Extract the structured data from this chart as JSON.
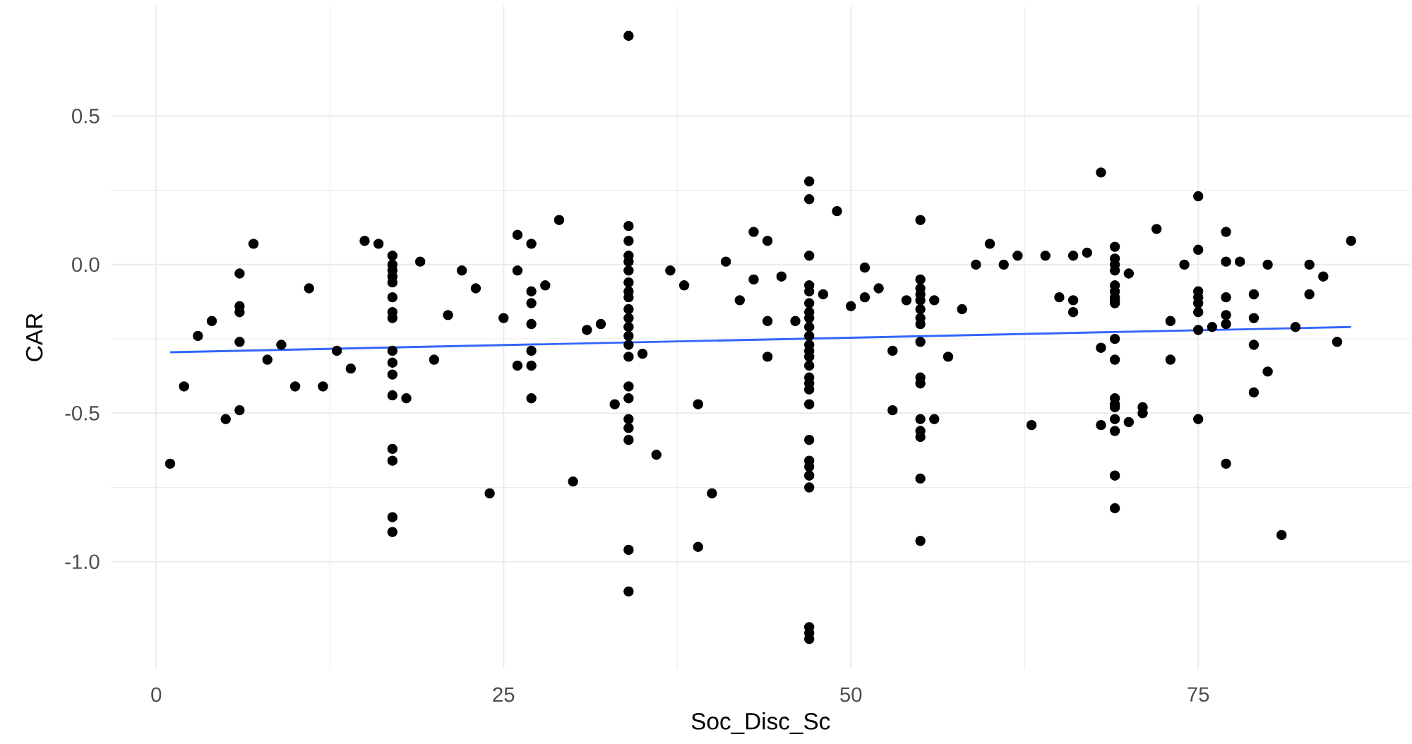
{
  "chart_data": {
    "type": "scatter",
    "xlabel": "Soc_Disc_Sc",
    "ylabel": "CAR",
    "xlim": [
      -3.25,
      90.25
    ],
    "ylim": [
      -1.36,
      0.87
    ],
    "xticks": [
      0,
      25,
      50,
      75
    ],
    "yticks": [
      {
        "value": -1.0,
        "label": "-1.0"
      },
      -0.5,
      {
        "value": 0,
        "label": "0.0"
      },
      0.5
    ],
    "grid": true,
    "marker": "circle",
    "series": [
      {
        "color": "#000000",
        "x": [
          1,
          2,
          3,
          4,
          5,
          6,
          6,
          6,
          6,
          6,
          7,
          8,
          9,
          10,
          11,
          12,
          13,
          14,
          15,
          16,
          17,
          17,
          17,
          17,
          17,
          17,
          17,
          17,
          17,
          17,
          17,
          17,
          17,
          17,
          17,
          17,
          18,
          19,
          20,
          21,
          22,
          23,
          24,
          25,
          26,
          26,
          26,
          27,
          27,
          27,
          27,
          27,
          27,
          27,
          28,
          29,
          30,
          31,
          32,
          33,
          34,
          34,
          34,
          34,
          34,
          34,
          34,
          34,
          34,
          34,
          34,
          34,
          34,
          34,
          34,
          34,
          34,
          34,
          34,
          34,
          34,
          34,
          35,
          36,
          37,
          38,
          39,
          39,
          40,
          41,
          42,
          43,
          43,
          44,
          44,
          44,
          45,
          46,
          47,
          47,
          47,
          47,
          47,
          47,
          47,
          47,
          47,
          47,
          47,
          47,
          47,
          47,
          47,
          47,
          47,
          47,
          47,
          47,
          47,
          47,
          47,
          47,
          47,
          47,
          48,
          49,
          50,
          51,
          51,
          52,
          53,
          53,
          54,
          55,
          55,
          55,
          55,
          55,
          55,
          55,
          55,
          55,
          55,
          55,
          55,
          55,
          55,
          55,
          55,
          56,
          56,
          57,
          58,
          59,
          60,
          61,
          62,
          63,
          64,
          65,
          66,
          66,
          66,
          67,
          68,
          68,
          68,
          69,
          69,
          69,
          69,
          69,
          69,
          69,
          69,
          69,
          69,
          69,
          69,
          69,
          69,
          69,
          69,
          69,
          69,
          70,
          70,
          71,
          71,
          72,
          73,
          73,
          74,
          75,
          75,
          75,
          75,
          75,
          75,
          75,
          75,
          76,
          77,
          77,
          77,
          77,
          77,
          77,
          78,
          79,
          79,
          79,
          79,
          80,
          80,
          81,
          82,
          83,
          83,
          84,
          85,
          86
        ],
        "values": [
          -0.67,
          -0.41,
          -0.24,
          -0.19,
          -0.52,
          -0.03,
          -0.14,
          -0.16,
          -0.26,
          -0.49,
          0.07,
          -0.32,
          -0.27,
          -0.41,
          -0.08,
          -0.41,
          -0.29,
          -0.35,
          0.08,
          0.07,
          0.03,
          0.0,
          -0.02,
          -0.04,
          -0.06,
          -0.11,
          -0.16,
          -0.18,
          -0.29,
          -0.33,
          -0.37,
          -0.44,
          -0.62,
          -0.66,
          -0.85,
          -0.9,
          -0.45,
          0.01,
          -0.32,
          -0.17,
          -0.02,
          -0.08,
          -0.77,
          -0.18,
          0.1,
          -0.02,
          -0.34,
          0.07,
          -0.09,
          -0.13,
          -0.2,
          -0.29,
          -0.34,
          -0.45,
          -0.07,
          0.15,
          -0.73,
          -0.22,
          -0.2,
          -0.47,
          0.77,
          0.13,
          0.08,
          0.03,
          0.01,
          -0.02,
          -0.06,
          -0.09,
          -0.11,
          -0.15,
          -0.18,
          -0.21,
          -0.24,
          -0.27,
          -0.31,
          -0.41,
          -0.45,
          -0.52,
          -0.55,
          -0.59,
          -0.96,
          -1.1,
          -0.3,
          -0.64,
          -0.02,
          -0.07,
          -0.47,
          -0.95,
          -0.77,
          0.01,
          -0.12,
          0.11,
          -0.05,
          0.08,
          -0.19,
          -0.31,
          -0.04,
          -0.19,
          0.28,
          0.22,
          0.03,
          -0.07,
          -0.09,
          -0.13,
          -0.16,
          -0.18,
          -0.21,
          -0.24,
          -0.27,
          -0.29,
          -0.31,
          -0.34,
          -0.38,
          -0.4,
          -0.42,
          -0.47,
          -0.59,
          -0.66,
          -0.68,
          -0.71,
          -0.75,
          -1.22,
          -1.24,
          -1.26,
          -0.1,
          0.18,
          -0.14,
          -0.01,
          -0.11,
          -0.08,
          -0.29,
          -0.49,
          -0.12,
          0.15,
          -0.05,
          -0.08,
          -0.1,
          -0.12,
          -0.15,
          -0.18,
          -0.2,
          -0.26,
          -0.38,
          -0.4,
          -0.52,
          -0.56,
          -0.58,
          -0.72,
          -0.93,
          -0.12,
          -0.52,
          -0.31,
          -0.15,
          0.0,
          0.07,
          0.0,
          0.03,
          -0.54,
          0.03,
          -0.11,
          0.03,
          -0.12,
          -0.16,
          0.04,
          0.31,
          -0.28,
          -0.54,
          0.06,
          0.02,
          0.0,
          -0.02,
          -0.07,
          -0.09,
          -0.11,
          -0.12,
          -0.13,
          -0.25,
          -0.32,
          -0.45,
          -0.47,
          -0.48,
          -0.52,
          -0.56,
          -0.71,
          -0.82,
          -0.03,
          -0.53,
          -0.48,
          -0.5,
          0.12,
          -0.19,
          -0.32,
          0.0,
          0.23,
          0.05,
          -0.09,
          -0.11,
          -0.13,
          -0.16,
          -0.22,
          -0.52,
          -0.21,
          0.11,
          0.01,
          -0.11,
          -0.17,
          -0.2,
          -0.67,
          0.01,
          -0.1,
          -0.18,
          -0.27,
          -0.43,
          0.0,
          -0.36,
          -0.91,
          -0.21,
          0.0,
          -0.1,
          -0.04,
          -0.26,
          0.08
        ]
      },
      {
        "type": "line",
        "color": "#3366ff",
        "marker": "none",
        "x": [
          1,
          86
        ],
        "values": [
          -0.295,
          -0.21
        ]
      }
    ]
  }
}
